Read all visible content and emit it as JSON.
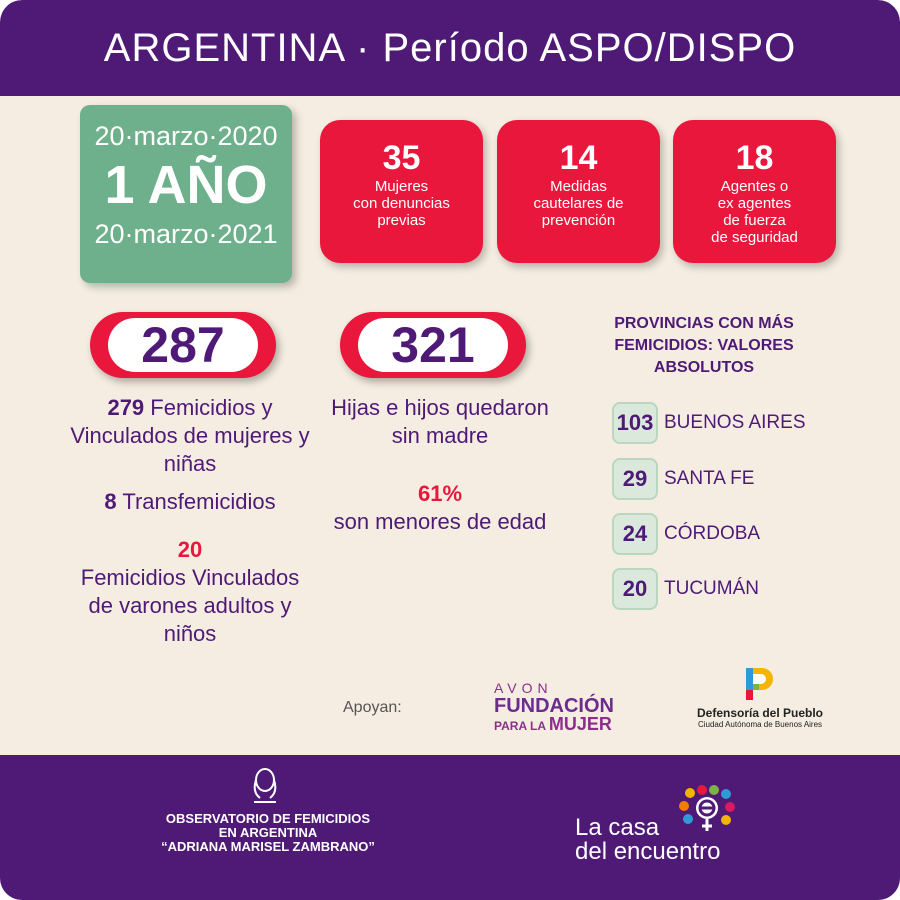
{
  "header": {
    "title": "ARGENTINA · Período ASPO/DISPO"
  },
  "period": {
    "start": "20·marzo·2020",
    "duration": "1 AÑO",
    "end": "20·marzo·2021"
  },
  "cards": [
    {
      "value": "35",
      "label": "Mujeres\ncon denuncias\nprevias"
    },
    {
      "value": "14",
      "label": "Medidas\ncautelares de\nprevención"
    },
    {
      "value": "18",
      "label": "Agentes o\nex agentes\nde fuerza\nde seguridad"
    }
  ],
  "femicides": {
    "total": "287",
    "femicidios_count": "279",
    "femicidios_text": "Femicidios y Vinculados de mujeres y niñas",
    "trans_count": "8",
    "trans_text": "Transfemicidios",
    "vinculados_count": "20",
    "vinculados_text": "Femicidios Vinculados de varones adultos y niños"
  },
  "children": {
    "total": "321",
    "text": "Hijas e hijos quedaron sin madre",
    "percent": "61%",
    "percent_text": "son menores de edad"
  },
  "provinces": {
    "title": "PROVINCIAS CON MÁS FEMICIDIOS: VALORES ABSOLUTOS",
    "rows": [
      {
        "value": "103",
        "name": "BUENOS AIRES"
      },
      {
        "value": "29",
        "name": "SANTA FE"
      },
      {
        "value": "24",
        "name": "CÓRDOBA"
      },
      {
        "value": "20",
        "name": "TUCUMÁN"
      }
    ]
  },
  "supporters": {
    "label": "Apoyan:",
    "avon_top": "AVON",
    "avon_main": "FUNDACIÓN",
    "avon_small": "PARA LA",
    "avon_bold": "MUJER",
    "defensoria": "Defensoría del Pueblo",
    "defensoria_sub": "Ciudad Autónoma de Buenos Aires"
  },
  "footer": {
    "observatorio_line1": "OBSERVATORIO DE FEMICIDIOS",
    "observatorio_line2": "EN ARGENTINA",
    "observatorio_line3": "“ADRIANA MARISEL ZAMBRANO”",
    "casa_line1": "La casa",
    "casa_line2": "del encuentro"
  },
  "colors": {
    "purple": "#4e1a76",
    "red": "#e8173b",
    "green": "#6db08b",
    "cream": "#f5ede1"
  },
  "icons": [
    "observatorio-logo-icon",
    "casa-del-encuentro-logo-icon",
    "defensoria-logo-icon"
  ]
}
